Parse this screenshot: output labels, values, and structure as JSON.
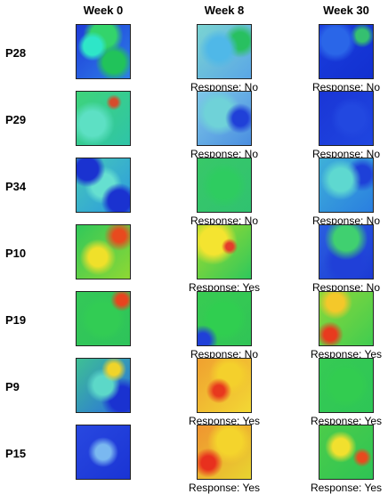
{
  "columns": [
    "Week 0",
    "Week 8",
    "Week 30"
  ],
  "patients": [
    {
      "id": "P28",
      "responses": [
        "Response: No",
        "Response: No"
      ],
      "maps": [
        "radial-gradient(circle at 30% 40%, #2ee6c8 0 18%, transparent 30%), radial-gradient(circle at 70% 70%, #21c35a 0 20%, transparent 35%), radial-gradient(circle at 50% 20%, #33d46b 0 25%, transparent 40%), linear-gradient(135deg,#1e3bd8,#2e7fe8)",
        "radial-gradient(circle at 40% 45%, #4fb8e8 0 25%, transparent 45%), radial-gradient(circle at 80% 30%, #28c060 0 15%, transparent 30%), linear-gradient(135deg,#7ad4d2,#5aa6e6)",
        "radial-gradient(circle at 30% 30%, #2a66e8 0 25%, transparent 40%), radial-gradient(circle at 80% 20%, #35c070 0 10%, transparent 20%), linear-gradient(135deg,#1a3ddd,#1230d0)"
      ]
    },
    {
      "id": "P29",
      "responses": [
        "Response: No",
        "Response: No"
      ],
      "maps": [
        "radial-gradient(circle at 70% 20%, #d64b2b 0 6%, transparent 14%), radial-gradient(circle at 30% 60%, #5de0c4 0 25%, transparent 45%), linear-gradient(135deg,#3ed47a,#2fc4a8)",
        "radial-gradient(circle at 80% 50%, #2040d8 0 15%, transparent 30%), radial-gradient(circle at 40% 40%, #6fd2d8 0 30%, transparent 50%), linear-gradient(135deg,#7ec8e8,#4a8ee0)",
        "radial-gradient(circle at 60% 50%, #2248e0 0 30%, transparent 50%), linear-gradient(135deg,#1a36d6,#1f46e0)"
      ]
    },
    {
      "id": "P34",
      "responses": [
        "Response: No",
        "Response: No"
      ],
      "maps": [
        "radial-gradient(circle at 20% 20%, #1a32d0 0 18%, transparent 30%), radial-gradient(circle at 80% 80%, #1a32d0 0 18%, transparent 30%), radial-gradient(circle at 50% 50%, #66e0d0 0 30%, transparent 50%), linear-gradient(135deg,#46c8b8,#2c9ae0)",
        "radial-gradient(circle at 50% 50%, #2ecc60 0 35%, transparent 60%), linear-gradient(135deg,#38c868,#30c270)",
        "radial-gradient(circle at 40% 40%, #5ed8d0 0 25%, transparent 45%), radial-gradient(circle at 80% 30%, #1e40d8 0 15%, transparent 30%), linear-gradient(135deg,#3eb0d8,#2a7ee0)"
      ]
    },
    {
      "id": "P10",
      "responses": [
        "Response: Yes",
        "Response: No"
      ],
      "maps": [
        "radial-gradient(circle at 80% 20%, #e84a1e 0 10%, transparent 25%), radial-gradient(circle at 40% 60%, #f0e02a 0 20%, transparent 40%), linear-gradient(135deg,#30c85a,#8ed834)",
        "radial-gradient(circle at 60% 40%, #e43c2a 0 8%, transparent 18%), radial-gradient(circle at 30% 30%, #f4e430 0 25%, transparent 45%), linear-gradient(135deg,#a4dc2c,#2ec85c)",
        "radial-gradient(circle at 50% 25%, #40d070 0 25%, transparent 45%), radial-gradient(circle at 50% 70%, #2040d8 0 30%, transparent 50%), linear-gradient(135deg,#2a5ee0,#1c3ad4)"
      ]
    },
    {
      "id": "P19",
      "responses": [
        "Response: No",
        "Response: Yes"
      ],
      "maps": [
        "radial-gradient(circle at 85% 15%, #e8441e 0 8%, transparent 18%), radial-gradient(circle at 50% 50%, #32cc54 0 40%, transparent 60%), linear-gradient(135deg,#34c858,#2ec45a)",
        "radial-gradient(circle at 10% 90%, #2040d8 0 10%, transparent 22%), radial-gradient(circle at 50% 50%, #30ce50 0 40%, transparent 60%), linear-gradient(135deg,#38cc52,#30c456)",
        "radial-gradient(circle at 20% 80%, #e83a1e 0 10%, transparent 22%), radial-gradient(circle at 30% 20%, #f4c82a 0 15%, transparent 30%), linear-gradient(135deg,#8cd83a,#40cc50)"
      ]
    },
    {
      "id": "P9",
      "responses": [
        "Response: Yes",
        "Response: Yes"
      ],
      "maps": [
        "radial-gradient(circle at 70% 20%, #f0d42a 0 10%, transparent 22%), radial-gradient(circle at 50% 50%, #5cd8c8 0 25%, transparent 45%), radial-gradient(circle at 85% 75%, #1a32d0 0 20%, transparent 35%), linear-gradient(135deg,#3ec094,#2a6ee0)",
        "radial-gradient(circle at 40% 60%, #e8381e 0 12%, transparent 28%), radial-gradient(circle at 60% 30%, #f4d02c 0 22%, transparent 42%), linear-gradient(135deg,#f0a030,#f2d834)",
        "radial-gradient(circle at 50% 50%, #32cc50 0 40%, transparent 60%), linear-gradient(135deg,#36ca54,#2ec656)"
      ]
    },
    {
      "id": "P15",
      "responses": [
        "Response: Yes",
        "Response: Yes"
      ],
      "maps": [
        "radial-gradient(circle at 50% 50%, #7ab8f0 0 20%, transparent 40%), linear-gradient(135deg,#2848e0,#1a34d4)",
        "radial-gradient(circle at 20% 70%, #e8301e 0 12%, transparent 26%), radial-gradient(circle at 60% 30%, #f4d42c 0 25%, transparent 45%), linear-gradient(135deg,#f09430,#e8d430)",
        "radial-gradient(circle at 80% 60%, #e84a1e 0 8%, transparent 18%), radial-gradient(circle at 40% 40%, #f2e02e 0 18%, transparent 35%), linear-gradient(135deg,#4ccc4a,#2ec454)"
      ]
    }
  ]
}
